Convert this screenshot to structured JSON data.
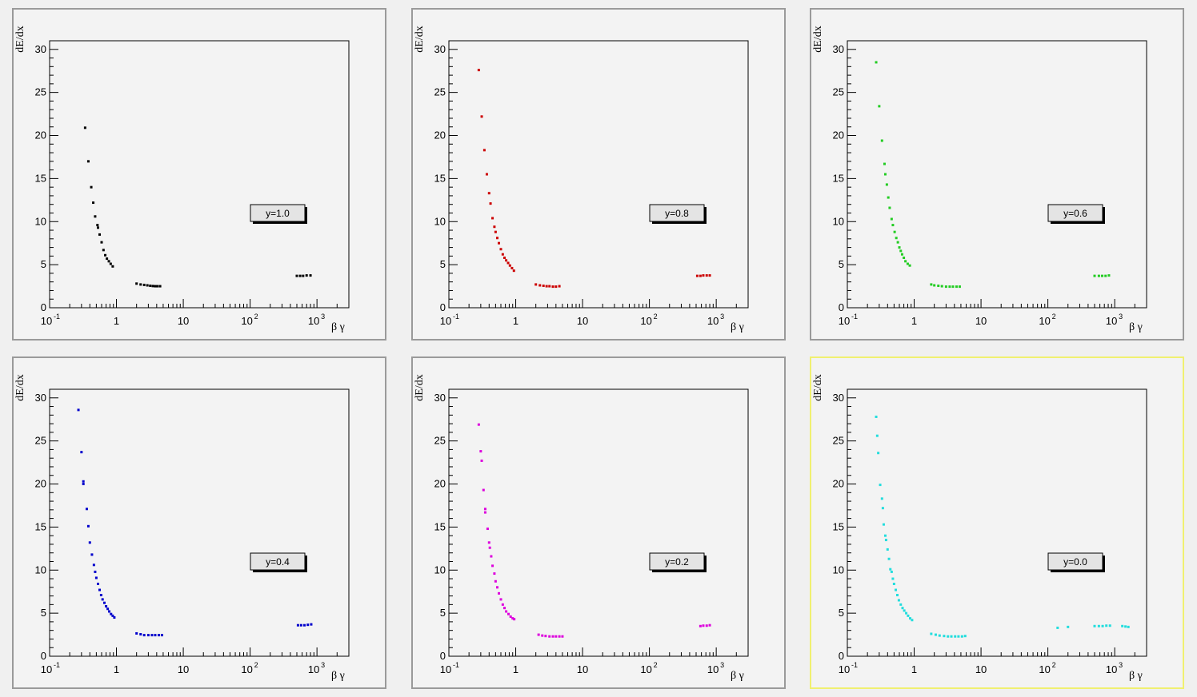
{
  "layout": {
    "x_axis_title": "β γ",
    "y_axis_title": "dE/dx"
  },
  "chart_data": [
    {
      "type": "scatter",
      "label": "y=1.0",
      "color": "#000000",
      "xlim": [
        0.1,
        3000
      ],
      "xscale": "log",
      "ylim": [
        0,
        31
      ],
      "xticks": [
        "10",
        "1",
        "10",
        "10",
        "10"
      ],
      "xtick_exp": [
        "-1",
        "",
        "",
        "2",
        "3"
      ],
      "yticks": [
        "0",
        "5",
        "10",
        "15",
        "20",
        "25",
        "30"
      ],
      "xlabel": "β γ",
      "ylabel": "dE/dx",
      "legend": "y=1.0",
      "points": [
        [
          0.34,
          20.9
        ],
        [
          0.38,
          17
        ],
        [
          0.42,
          14
        ],
        [
          0.45,
          12.2
        ],
        [
          0.48,
          10.6
        ],
        [
          0.52,
          9.6
        ],
        [
          0.53,
          9.3
        ],
        [
          0.56,
          8.5
        ],
        [
          0.6,
          7.6
        ],
        [
          0.64,
          6.7
        ],
        [
          0.68,
          6.1
        ],
        [
          0.72,
          5.7
        ],
        [
          0.77,
          5.4
        ],
        [
          0.82,
          5.1
        ],
        [
          0.88,
          4.8
        ],
        [
          2.0,
          2.8
        ],
        [
          2.3,
          2.7
        ],
        [
          2.6,
          2.65
        ],
        [
          2.9,
          2.6
        ],
        [
          3.2,
          2.55
        ],
        [
          3.5,
          2.52
        ],
        [
          3.8,
          2.5
        ],
        [
          4.1,
          2.5
        ],
        [
          4.5,
          2.5
        ],
        [
          500,
          3.7
        ],
        [
          560,
          3.7
        ],
        [
          620,
          3.7
        ],
        [
          700,
          3.75
        ],
        [
          800,
          3.75
        ]
      ]
    },
    {
      "type": "scatter",
      "label": "y=0.8",
      "color": "#cc0000",
      "xlim": [
        0.1,
        3000
      ],
      "xscale": "log",
      "ylim": [
        0,
        31
      ],
      "xticks": [
        "10",
        "1",
        "10",
        "10",
        "10"
      ],
      "xtick_exp": [
        "-1",
        "",
        "",
        "2",
        "3"
      ],
      "yticks": [
        "0",
        "5",
        "10",
        "15",
        "20",
        "25",
        "30"
      ],
      "xlabel": "β γ",
      "ylabel": "dE/dx",
      "legend": "y=0.8",
      "points": [
        [
          0.28,
          27.6
        ],
        [
          0.31,
          22.2
        ],
        [
          0.34,
          18.3
        ],
        [
          0.37,
          15.5
        ],
        [
          0.4,
          13.3
        ],
        [
          0.42,
          12.1
        ],
        [
          0.45,
          10.4
        ],
        [
          0.48,
          9.4
        ],
        [
          0.5,
          8.8
        ],
        [
          0.53,
          8.1
        ],
        [
          0.56,
          7.5
        ],
        [
          0.6,
          6.8
        ],
        [
          0.64,
          6.2
        ],
        [
          0.68,
          5.8
        ],
        [
          0.72,
          5.5
        ],
        [
          0.77,
          5.2
        ],
        [
          0.82,
          4.9
        ],
        [
          0.88,
          4.6
        ],
        [
          0.94,
          4.3
        ],
        [
          2.0,
          2.7
        ],
        [
          2.3,
          2.6
        ],
        [
          2.6,
          2.55
        ],
        [
          2.9,
          2.5
        ],
        [
          3.2,
          2.5
        ],
        [
          3.6,
          2.45
        ],
        [
          4.0,
          2.45
        ],
        [
          4.5,
          2.5
        ],
        [
          520,
          3.7
        ],
        [
          580,
          3.7
        ],
        [
          640,
          3.75
        ],
        [
          720,
          3.75
        ],
        [
          800,
          3.75
        ]
      ]
    },
    {
      "type": "scatter",
      "label": "y=0.6",
      "color": "#22cc22",
      "xlim": [
        0.1,
        3000
      ],
      "xscale": "log",
      "ylim": [
        0,
        31
      ],
      "xticks": [
        "10",
        "1",
        "10",
        "10",
        "10"
      ],
      "xtick_exp": [
        "-1",
        "",
        "",
        "2",
        "3"
      ],
      "yticks": [
        "0",
        "5",
        "10",
        "15",
        "20",
        "25",
        "30"
      ],
      "xlabel": "β γ",
      "ylabel": "dE/dx",
      "legend": "y=0.6",
      "points": [
        [
          0.27,
          28.5
        ],
        [
          0.3,
          23.4
        ],
        [
          0.33,
          19.4
        ],
        [
          0.36,
          16.7
        ],
        [
          0.37,
          15.5
        ],
        [
          0.39,
          14.3
        ],
        [
          0.41,
          12.8
        ],
        [
          0.43,
          11.6
        ],
        [
          0.46,
          10.3
        ],
        [
          0.48,
          9.6
        ],
        [
          0.51,
          8.8
        ],
        [
          0.54,
          8.1
        ],
        [
          0.57,
          7.6
        ],
        [
          0.6,
          7.0
        ],
        [
          0.63,
          6.6
        ],
        [
          0.66,
          6.2
        ],
        [
          0.7,
          5.8
        ],
        [
          0.74,
          5.4
        ],
        [
          0.8,
          5.1
        ],
        [
          0.86,
          4.9
        ],
        [
          1.8,
          2.7
        ],
        [
          2.0,
          2.6
        ],
        [
          2.3,
          2.55
        ],
        [
          2.6,
          2.5
        ],
        [
          3.0,
          2.45
        ],
        [
          3.4,
          2.45
        ],
        [
          3.8,
          2.45
        ],
        [
          4.3,
          2.45
        ],
        [
          4.8,
          2.45
        ],
        [
          500,
          3.7
        ],
        [
          580,
          3.7
        ],
        [
          650,
          3.7
        ],
        [
          730,
          3.7
        ],
        [
          820,
          3.75
        ]
      ]
    },
    {
      "type": "scatter",
      "label": "y=0.4",
      "color": "#0000cc",
      "xlim": [
        0.1,
        3000
      ],
      "xscale": "log",
      "ylim": [
        0,
        31
      ],
      "xticks": [
        "10",
        "1",
        "10",
        "10",
        "10"
      ],
      "xtick_exp": [
        "-1",
        "",
        "",
        "2",
        "3"
      ],
      "yticks": [
        "0",
        "5",
        "10",
        "15",
        "20",
        "25",
        "30"
      ],
      "xlabel": "β γ",
      "ylabel": "dE/dx",
      "legend": "y=0.4",
      "points": [
        [
          0.27,
          28.6
        ],
        [
          0.3,
          23.7
        ],
        [
          0.32,
          20.3
        ],
        [
          0.32,
          20.0
        ],
        [
          0.36,
          17.1
        ],
        [
          0.38,
          15.1
        ],
        [
          0.4,
          13.2
        ],
        [
          0.43,
          11.8
        ],
        [
          0.46,
          10.6
        ],
        [
          0.48,
          9.8
        ],
        [
          0.5,
          9.1
        ],
        [
          0.53,
          8.4
        ],
        [
          0.56,
          7.7
        ],
        [
          0.59,
          7.1
        ],
        [
          0.62,
          6.6
        ],
        [
          0.66,
          6.2
        ],
        [
          0.7,
          5.8
        ],
        [
          0.74,
          5.5
        ],
        [
          0.78,
          5.2
        ],
        [
          0.83,
          4.9
        ],
        [
          0.88,
          4.7
        ],
        [
          0.93,
          4.5
        ],
        [
          2.0,
          2.65
        ],
        [
          2.3,
          2.55
        ],
        [
          2.6,
          2.45
        ],
        [
          3.0,
          2.45
        ],
        [
          3.4,
          2.45
        ],
        [
          3.8,
          2.45
        ],
        [
          4.3,
          2.45
        ],
        [
          4.8,
          2.45
        ],
        [
          520,
          3.6
        ],
        [
          580,
          3.6
        ],
        [
          650,
          3.6
        ],
        [
          730,
          3.65
        ],
        [
          820,
          3.7
        ]
      ]
    },
    {
      "type": "scatter",
      "label": "y=0.2",
      "color": "#dd00dd",
      "xlim": [
        0.1,
        3000
      ],
      "xscale": "log",
      "ylim": [
        0,
        31
      ],
      "xticks": [
        "10",
        "1",
        "10",
        "10",
        "10"
      ],
      "xtick_exp": [
        "-1",
        "",
        "",
        "2",
        "3"
      ],
      "yticks": [
        "0",
        "5",
        "10",
        "15",
        "20",
        "25",
        "30"
      ],
      "xlabel": "β γ",
      "ylabel": "dE/dx",
      "legend": "y=0.2",
      "points": [
        [
          0.28,
          26.9
        ],
        [
          0.3,
          23.8
        ],
        [
          0.31,
          22.7
        ],
        [
          0.33,
          19.3
        ],
        [
          0.35,
          17.1
        ],
        [
          0.35,
          16.7
        ],
        [
          0.38,
          14.8
        ],
        [
          0.4,
          13.2
        ],
        [
          0.41,
          12.6
        ],
        [
          0.43,
          11.6
        ],
        [
          0.45,
          10.5
        ],
        [
          0.48,
          9.6
        ],
        [
          0.5,
          8.7
        ],
        [
          0.53,
          8.0
        ],
        [
          0.56,
          7.3
        ],
        [
          0.6,
          6.6
        ],
        [
          0.64,
          6.0
        ],
        [
          0.68,
          5.6
        ],
        [
          0.72,
          5.2
        ],
        [
          0.78,
          4.9
        ],
        [
          0.84,
          4.6
        ],
        [
          0.9,
          4.4
        ],
        [
          0.95,
          4.3
        ],
        [
          2.2,
          2.5
        ],
        [
          2.5,
          2.4
        ],
        [
          2.8,
          2.35
        ],
        [
          3.2,
          2.3
        ],
        [
          3.6,
          2.3
        ],
        [
          4.0,
          2.3
        ],
        [
          4.5,
          2.3
        ],
        [
          5.0,
          2.3
        ],
        [
          580,
          3.5
        ],
        [
          640,
          3.55
        ],
        [
          720,
          3.55
        ],
        [
          800,
          3.6
        ]
      ]
    },
    {
      "type": "scatter",
      "label": "y=0.0",
      "color": "#22dddd",
      "xlim": [
        0.1,
        3000
      ],
      "xscale": "log",
      "ylim": [
        0,
        31
      ],
      "xticks": [
        "10",
        "1",
        "10",
        "10",
        "10"
      ],
      "xtick_exp": [
        "-1",
        "",
        "",
        "2",
        "3"
      ],
      "yticks": [
        "0",
        "5",
        "10",
        "15",
        "20",
        "25",
        "30"
      ],
      "xlabel": "β γ",
      "ylabel": "dE/dx",
      "legend": "y=0.0",
      "points": [
        [
          0.27,
          27.8
        ],
        [
          0.28,
          25.6
        ],
        [
          0.29,
          23.6
        ],
        [
          0.31,
          19.9
        ],
        [
          0.33,
          18.3
        ],
        [
          0.34,
          17.2
        ],
        [
          0.35,
          15.3
        ],
        [
          0.37,
          14.0
        ],
        [
          0.38,
          13.5
        ],
        [
          0.4,
          12.4
        ],
        [
          0.42,
          11.3
        ],
        [
          0.44,
          10.1
        ],
        [
          0.46,
          9.8
        ],
        [
          0.48,
          9.0
        ],
        [
          0.5,
          8.4
        ],
        [
          0.53,
          7.7
        ],
        [
          0.56,
          7.1
        ],
        [
          0.59,
          6.5
        ],
        [
          0.63,
          6.0
        ],
        [
          0.67,
          5.6
        ],
        [
          0.71,
          5.3
        ],
        [
          0.76,
          5.0
        ],
        [
          0.81,
          4.7
        ],
        [
          0.87,
          4.4
        ],
        [
          0.93,
          4.2
        ],
        [
          1.8,
          2.6
        ],
        [
          2.1,
          2.5
        ],
        [
          2.4,
          2.4
        ],
        [
          2.8,
          2.35
        ],
        [
          3.2,
          2.3
        ],
        [
          3.6,
          2.3
        ],
        [
          4.1,
          2.3
        ],
        [
          4.6,
          2.3
        ],
        [
          5.2,
          2.3
        ],
        [
          5.8,
          2.35
        ],
        [
          140,
          3.3
        ],
        [
          200,
          3.4
        ],
        [
          500,
          3.5
        ],
        [
          580,
          3.5
        ],
        [
          660,
          3.5
        ],
        [
          750,
          3.55
        ],
        [
          850,
          3.55
        ],
        [
          1300,
          3.5
        ],
        [
          1450,
          3.45
        ],
        [
          1600,
          3.4
        ]
      ]
    }
  ]
}
